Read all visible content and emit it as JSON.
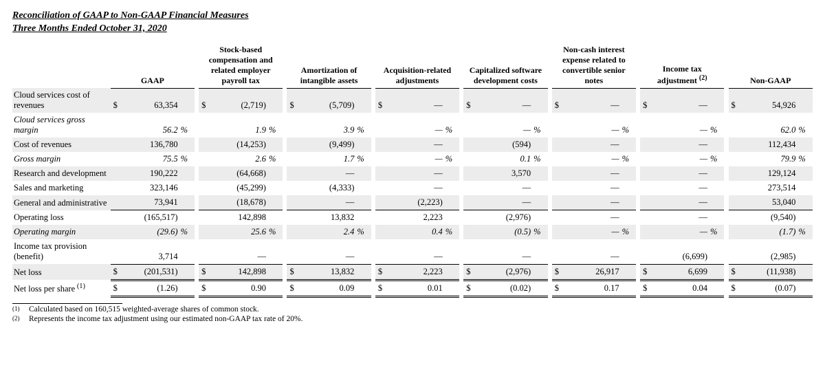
{
  "title_line1": "Reconciliation of GAAP to Non-GAAP Financial Measures",
  "title_line2": "Three Months Ended October 31, 2020",
  "columns": [
    "GAAP",
    "Stock-based compensation and related employer payroll tax",
    "Amortization of intangible assets",
    "Acquisition-related adjustments",
    "Capitalized software development costs",
    "Non-cash interest expense related to convertible senior notes",
    "Income tax adjustment",
    "Non-GAAP"
  ],
  "header_sup": "(2)",
  "rows": [
    {
      "label": "Cloud services cost of revenues",
      "shade": true,
      "italic": false,
      "border": "none",
      "cells": [
        [
          "$",
          "63,354",
          ""
        ],
        [
          "$",
          "(2,719)",
          ""
        ],
        [
          "$",
          "(5,709)",
          ""
        ],
        [
          "$",
          "—",
          ""
        ],
        [
          "$",
          "—",
          ""
        ],
        [
          "$",
          "—",
          ""
        ],
        [
          "$",
          "—",
          ""
        ],
        [
          "$",
          "54,926",
          ""
        ]
      ]
    },
    {
      "label": "Cloud services gross margin",
      "shade": false,
      "italic": true,
      "border": "none",
      "cells": [
        [
          "",
          "56.2",
          "%"
        ],
        [
          "",
          "1.9",
          "%"
        ],
        [
          "",
          "3.9",
          "%"
        ],
        [
          "",
          "—",
          "%"
        ],
        [
          "",
          "—",
          "%"
        ],
        [
          "",
          "—",
          "%"
        ],
        [
          "",
          "—",
          "%"
        ],
        [
          "",
          "62.0",
          "%"
        ]
      ]
    },
    {
      "label": "Cost of revenues",
      "shade": true,
      "italic": false,
      "border": "none",
      "cells": [
        [
          "",
          "136,780",
          ""
        ],
        [
          "",
          "(14,253)",
          ""
        ],
        [
          "",
          "(9,499)",
          ""
        ],
        [
          "",
          "—",
          ""
        ],
        [
          "",
          "(594)",
          ""
        ],
        [
          "",
          "—",
          ""
        ],
        [
          "",
          "—",
          ""
        ],
        [
          "",
          "112,434",
          ""
        ]
      ]
    },
    {
      "label": "Gross margin",
      "shade": false,
      "italic": true,
      "border": "none",
      "cells": [
        [
          "",
          "75.5",
          "%"
        ],
        [
          "",
          "2.6",
          "%"
        ],
        [
          "",
          "1.7",
          "%"
        ],
        [
          "",
          "—",
          "%"
        ],
        [
          "",
          "0.1",
          "%"
        ],
        [
          "",
          "—",
          "%"
        ],
        [
          "",
          "—",
          "%"
        ],
        [
          "",
          "79.9",
          "%"
        ]
      ]
    },
    {
      "label": "Research and development",
      "shade": true,
      "italic": false,
      "border": "none",
      "cells": [
        [
          "",
          "190,222",
          ""
        ],
        [
          "",
          "(64,668)",
          ""
        ],
        [
          "",
          "—",
          ""
        ],
        [
          "",
          "—",
          ""
        ],
        [
          "",
          "3,570",
          ""
        ],
        [
          "",
          "—",
          ""
        ],
        [
          "",
          "—",
          ""
        ],
        [
          "",
          "129,124",
          ""
        ]
      ]
    },
    {
      "label": "Sales and marketing",
      "shade": false,
      "italic": false,
      "border": "none",
      "cells": [
        [
          "",
          "323,146",
          ""
        ],
        [
          "",
          "(45,299)",
          ""
        ],
        [
          "",
          "(4,333)",
          ""
        ],
        [
          "",
          "—",
          ""
        ],
        [
          "",
          "—",
          ""
        ],
        [
          "",
          "—",
          ""
        ],
        [
          "",
          "—",
          ""
        ],
        [
          "",
          "273,514",
          ""
        ]
      ]
    },
    {
      "label": "General and administrative",
      "shade": true,
      "italic": false,
      "border": "ul",
      "cells": [
        [
          "",
          "73,941",
          ""
        ],
        [
          "",
          "(18,678)",
          ""
        ],
        [
          "",
          "—",
          ""
        ],
        [
          "",
          "(2,223)",
          ""
        ],
        [
          "",
          "—",
          ""
        ],
        [
          "",
          "—",
          ""
        ],
        [
          "",
          "—",
          ""
        ],
        [
          "",
          "53,040",
          ""
        ]
      ]
    },
    {
      "label": "Operating loss",
      "shade": false,
      "italic": false,
      "border": "none",
      "cells": [
        [
          "",
          "(165,517)",
          ""
        ],
        [
          "",
          "142,898",
          ""
        ],
        [
          "",
          "13,832",
          ""
        ],
        [
          "",
          "2,223",
          ""
        ],
        [
          "",
          "(2,976)",
          ""
        ],
        [
          "",
          "—",
          ""
        ],
        [
          "",
          "—",
          ""
        ],
        [
          "",
          "(9,540)",
          ""
        ]
      ]
    },
    {
      "label": "Operating margin",
      "shade": true,
      "italic": true,
      "border": "none",
      "cells": [
        [
          "",
          "(29.6)",
          "%"
        ],
        [
          "",
          "25.6",
          "%"
        ],
        [
          "",
          "2.4",
          "%"
        ],
        [
          "",
          "0.4",
          "%"
        ],
        [
          "",
          "(0.5)",
          "%"
        ],
        [
          "",
          "—",
          "%"
        ],
        [
          "",
          "—",
          "%"
        ],
        [
          "",
          "(1.7)",
          "%"
        ]
      ]
    },
    {
      "label": "Income tax provision (benefit)",
      "shade": false,
      "italic": false,
      "border": "ul",
      "cells": [
        [
          "",
          "3,714",
          ""
        ],
        [
          "",
          "—",
          ""
        ],
        [
          "",
          "—",
          ""
        ],
        [
          "",
          "—",
          ""
        ],
        [
          "",
          "—",
          ""
        ],
        [
          "",
          "—",
          ""
        ],
        [
          "",
          "(6,699)",
          ""
        ],
        [
          "",
          "(2,985)",
          ""
        ]
      ]
    },
    {
      "label": "Net loss",
      "shade": true,
      "italic": false,
      "border": "dl",
      "cells": [
        [
          "$",
          "(201,531)",
          ""
        ],
        [
          "$",
          "142,898",
          ""
        ],
        [
          "$",
          "13,832",
          ""
        ],
        [
          "$",
          "2,223",
          ""
        ],
        [
          "$",
          "(2,976)",
          ""
        ],
        [
          "$",
          "26,917",
          ""
        ],
        [
          "$",
          "6,699",
          ""
        ],
        [
          "$",
          "(11,938)",
          ""
        ]
      ]
    },
    {
      "label": "Net loss per share",
      "shade": false,
      "italic": false,
      "border": "dl",
      "label_sup": "(1)",
      "cells": [
        [
          "$",
          "(1.26)",
          ""
        ],
        [
          "$",
          "0.90",
          ""
        ],
        [
          "$",
          "0.09",
          ""
        ],
        [
          "$",
          "0.01",
          ""
        ],
        [
          "$",
          "(0.02)",
          ""
        ],
        [
          "$",
          "0.17",
          ""
        ],
        [
          "$",
          "0.04",
          ""
        ],
        [
          "$",
          "(0.07)",
          ""
        ]
      ]
    }
  ],
  "footnotes": [
    {
      "idx": "(1)",
      "text": "Calculated based on 160,515 weighted-average shares of common stock."
    },
    {
      "idx": "(2)",
      "text": "Represents the income tax adjustment using our estimated non-GAAP tax rate of 20%."
    }
  ],
  "style": {
    "shade_color": "#ececec",
    "text_color": "#000000",
    "font_family": "Times New Roman"
  }
}
